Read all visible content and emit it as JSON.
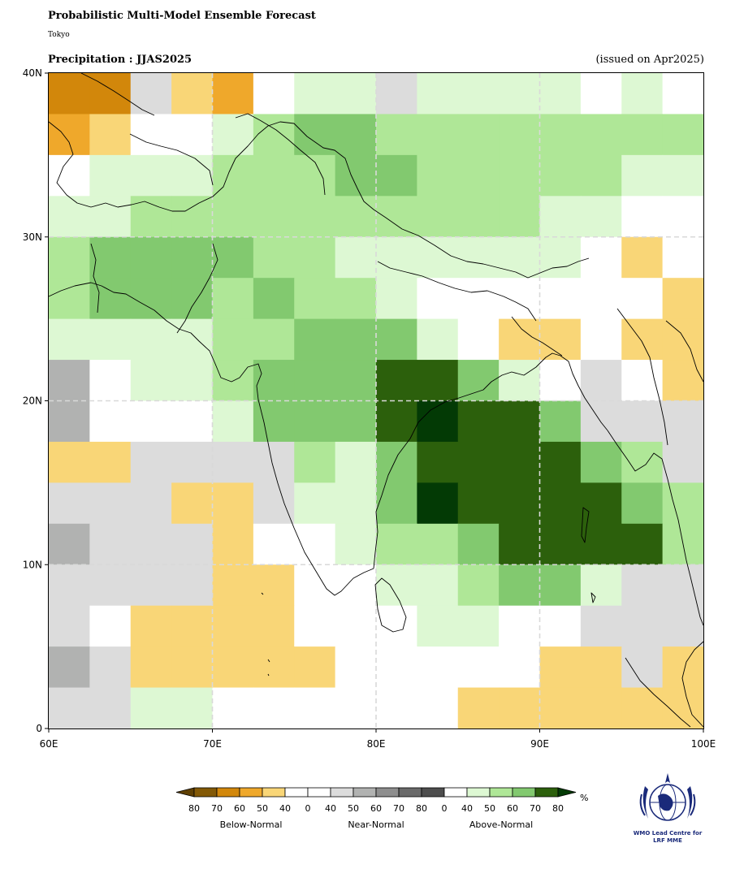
{
  "header": {
    "title": "Probabilistic Multi-Model Ensemble Forecast",
    "subtitle": "Tokyo",
    "variable_title": "Precipitation : JJAS2025",
    "issued": "(issued on Apr2025)"
  },
  "map": {
    "lon_range": [
      60,
      100
    ],
    "lat_range": [
      0,
      40
    ],
    "cell_size_deg": 2.5,
    "x_ticks": [
      "60E",
      "70E",
      "80E",
      "90E",
      "100E"
    ],
    "y_ticks": [
      "0",
      "10N",
      "20N",
      "30N",
      "40N"
    ],
    "gridlines": "dashed at 10 degree intervals",
    "category_colors": {
      "B70": "#d2870b",
      "B60": "#efa82b",
      "B50": "#f9d677",
      "W": "#ffffff",
      "N40": "#dcdcdc",
      "N50": "#b1b2b1",
      "A40": "#ddf8d3",
      "A50": "#afe797",
      "A60": "#82c96f",
      "A70": "#2c600c",
      "A80": "#033a05"
    },
    "grid_rows_top_to_bottom": [
      [
        "B70",
        "B70",
        "N40",
        "B50",
        "B60",
        "W",
        "A40",
        "A40",
        "N40",
        "A40",
        "A40",
        "A40",
        "A40",
        "W",
        "A40",
        "W"
      ],
      [
        "B60",
        "B50",
        "W",
        "W",
        "A40",
        "A50",
        "A60",
        "A60",
        "A50",
        "A50",
        "A50",
        "A50",
        "A50",
        "A50",
        "A50",
        "A50"
      ],
      [
        "W",
        "A40",
        "A40",
        "A40",
        "A50",
        "A50",
        "A50",
        "A60",
        "A60",
        "A50",
        "A50",
        "A50",
        "A50",
        "A50",
        "A40",
        "A40"
      ],
      [
        "A40",
        "A40",
        "A50",
        "A50",
        "A50",
        "A50",
        "A50",
        "A50",
        "A50",
        "A50",
        "A50",
        "A50",
        "A40",
        "A40",
        "W",
        "W"
      ],
      [
        "A50",
        "A60",
        "A60",
        "A60",
        "A60",
        "A50",
        "A50",
        "A40",
        "A40",
        "A40",
        "A40",
        "A40",
        "A40",
        "W",
        "B50",
        "W"
      ],
      [
        "A50",
        "A60",
        "A60",
        "A60",
        "A50",
        "A60",
        "A50",
        "A50",
        "A40",
        "W",
        "W",
        "W",
        "W",
        "W",
        "W",
        "B50"
      ],
      [
        "A40",
        "A40",
        "A40",
        "A40",
        "A50",
        "A50",
        "A60",
        "A60",
        "A60",
        "A40",
        "W",
        "B50",
        "B50",
        "W",
        "B50",
        "B50"
      ],
      [
        "N50",
        "W",
        "A40",
        "A40",
        "A50",
        "A60",
        "A60",
        "A60",
        "A70",
        "A70",
        "A60",
        "A40",
        "W",
        "N40",
        "W",
        "B50"
      ],
      [
        "N50",
        "W",
        "W",
        "W",
        "A40",
        "A60",
        "A60",
        "A60",
        "A70",
        "A80",
        "A70",
        "A70",
        "A60",
        "N40",
        "N40",
        "N40"
      ],
      [
        "B50",
        "B50",
        "N40",
        "N40",
        "N40",
        "N40",
        "A50",
        "A40",
        "A60",
        "A70",
        "A70",
        "A70",
        "A70",
        "A60",
        "A50",
        "N40"
      ],
      [
        "N40",
        "N40",
        "N40",
        "B50",
        "B50",
        "N40",
        "A40",
        "A40",
        "A60",
        "A80",
        "A70",
        "A70",
        "A70",
        "A70",
        "A60",
        "A50"
      ],
      [
        "N50",
        "N40",
        "N40",
        "N40",
        "B50",
        "W",
        "W",
        "A40",
        "A50",
        "A50",
        "A60",
        "A70",
        "A70",
        "A70",
        "A70",
        "A50"
      ],
      [
        "N40",
        "N40",
        "N40",
        "N40",
        "B50",
        "B50",
        "W",
        "W",
        "A40",
        "A40",
        "A50",
        "A60",
        "A60",
        "A40",
        "N40",
        "N40"
      ],
      [
        "N40",
        "W",
        "B50",
        "B50",
        "B50",
        "B50",
        "W",
        "W",
        "W",
        "A40",
        "A40",
        "W",
        "W",
        "N40",
        "N40",
        "N40"
      ],
      [
        "N50",
        "N40",
        "B50",
        "B50",
        "B50",
        "B50",
        "B50",
        "W",
        "W",
        "W",
        "W",
        "W",
        "B50",
        "B50",
        "N40",
        "B50"
      ],
      [
        "N40",
        "N40",
        "A40",
        "A40",
        "W",
        "W",
        "W",
        "W",
        "W",
        "W",
        "B50",
        "B50",
        "B50",
        "B50",
        "B50",
        "B50"
      ]
    ]
  },
  "legend": {
    "unit": "%",
    "colors": [
      "#835906",
      "#d2870b",
      "#efa82b",
      "#f9d677",
      "#ffffff",
      "#ffffff",
      "#dcdcdc",
      "#b1b2b1",
      "#8e8e8e",
      "#6a6a6a",
      "#4d4d4d",
      "#ffffff",
      "#ddf8d3",
      "#afe797",
      "#82c96f",
      "#2c600c"
    ],
    "left_cap_color": "#5f4004",
    "right_cap_color": "#033a05",
    "tick_labels": [
      "80",
      "70",
      "60",
      "50",
      "40",
      "0",
      "40",
      "50",
      "60",
      "70",
      "80",
      "0",
      "40",
      "50",
      "60",
      "70",
      "80"
    ],
    "groups": [
      "Below-Normal",
      "Near-Normal",
      "Above-Normal"
    ]
  },
  "logo": {
    "icon": "wmo-emblem-icon",
    "caption_line1": "WMO Lead Centre for",
    "caption_line2": "LRF MME"
  }
}
